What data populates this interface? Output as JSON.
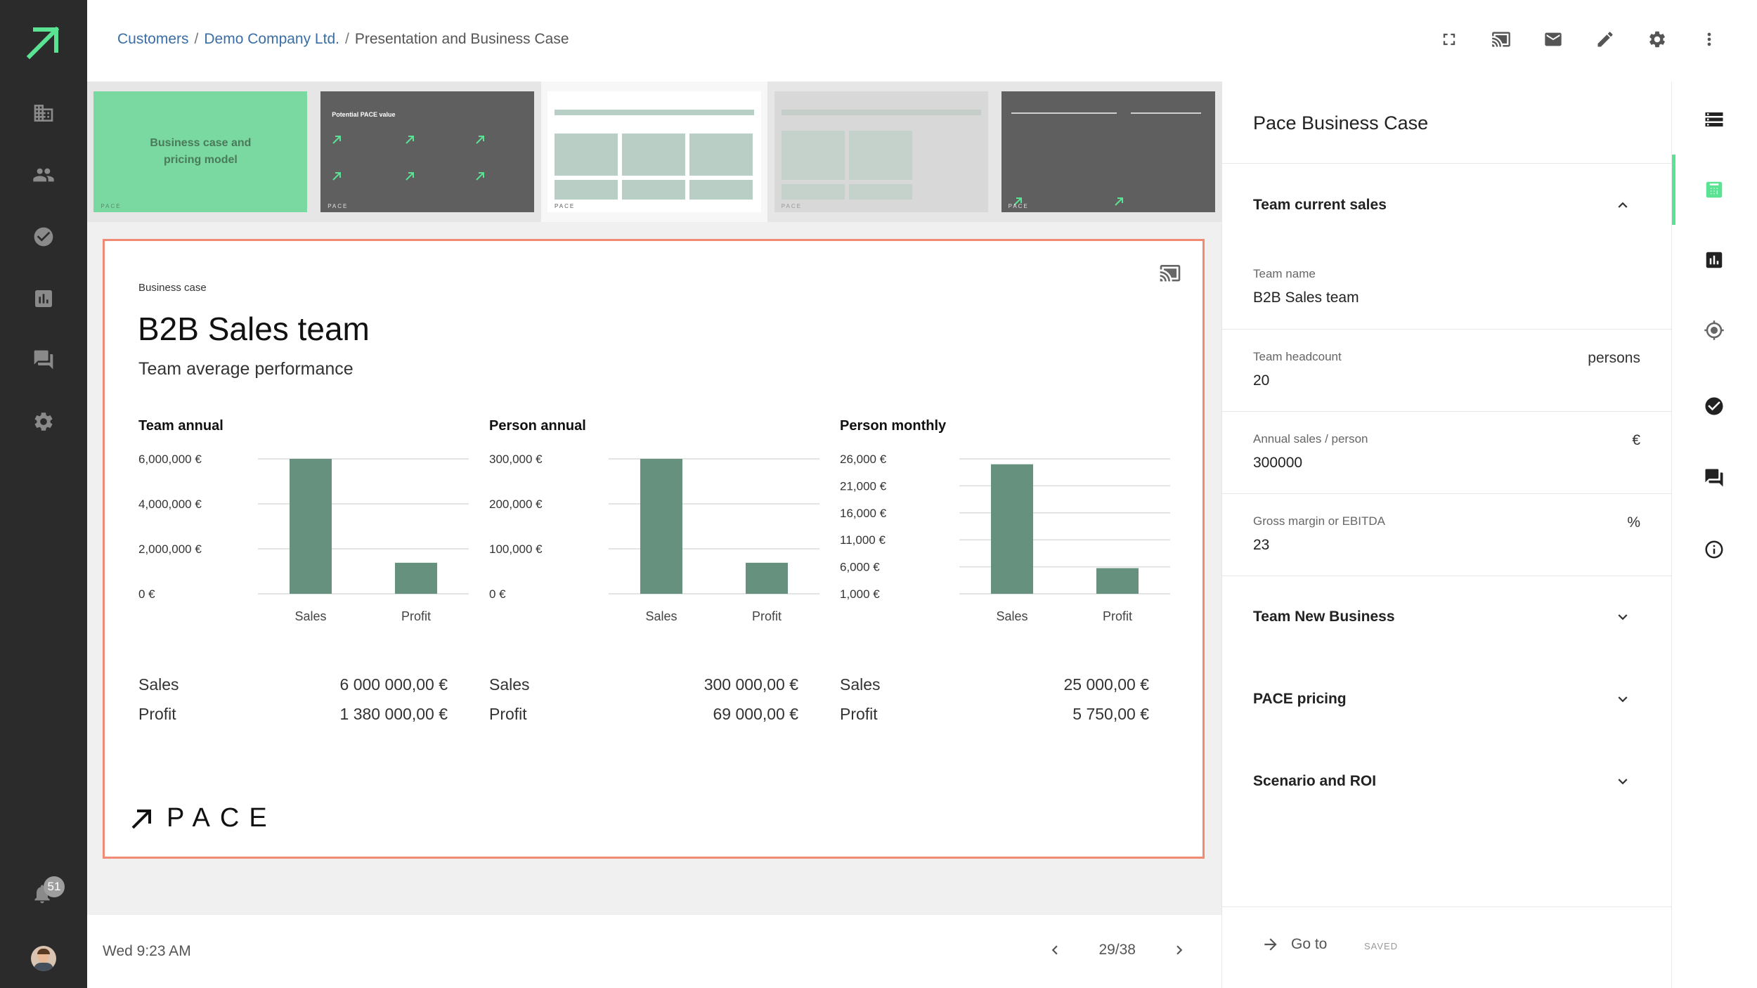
{
  "breadcrumb": {
    "items": [
      "Customers",
      "Demo Company Ltd.",
      "Presentation and Business Case"
    ]
  },
  "sidebar": {
    "items": [
      "building-icon",
      "people-icon",
      "check-circle-icon",
      "bar-chart-icon",
      "chat-icon",
      "gear-icon"
    ],
    "notifications_count": "51"
  },
  "thumbnails": {
    "items": [
      {
        "label": "Business case and pricing model",
        "footer": "PACE"
      },
      {
        "label": "Potential PACE value",
        "footer": "PACE"
      },
      {
        "label": "",
        "footer": "PACE"
      },
      {
        "label": "",
        "footer": "PACE"
      },
      {
        "label": "",
        "footer": "PACE"
      }
    ]
  },
  "slide": {
    "kicker": "Business case",
    "title": "B2B Sales team",
    "subtitle": "Team average performance",
    "logo_text": "PACE",
    "charts": {
      "team": {
        "title": "Team annual",
        "sales_label": "Sales",
        "sales_value": "6 000 000,00 €",
        "profit_label": "Profit",
        "profit_value": "1 380 000,00 €"
      },
      "person_annual": {
        "title": "Person annual",
        "sales_label": "Sales",
        "sales_value": "300 000,00 €",
        "profit_label": "Profit",
        "profit_value": "69 000,00 €"
      },
      "person_monthly": {
        "title": "Person monthly",
        "sales_label": "Sales",
        "sales_value": "25 000,00 €",
        "profit_label": "Profit",
        "profit_value": "5 750,00 €"
      }
    }
  },
  "chart_data": [
    {
      "type": "bar",
      "title": "Team annual",
      "categories": [
        "Sales",
        "Profit"
      ],
      "values": [
        6000000,
        1380000
      ],
      "yticks": [
        "0 €",
        "2,000,000 €",
        "4,000,000 €",
        "6,000,000 €"
      ],
      "ytick_values": [
        0,
        2000000,
        4000000,
        6000000
      ],
      "ylim": [
        0,
        6000000
      ],
      "color": "#66917f"
    },
    {
      "type": "bar",
      "title": "Person annual",
      "categories": [
        "Sales",
        "Profit"
      ],
      "values": [
        300000,
        69000
      ],
      "yticks": [
        "0 €",
        "100,000 €",
        "200,000 €",
        "300,000 €"
      ],
      "ytick_values": [
        0,
        100000,
        200000,
        300000
      ],
      "ylim": [
        0,
        300000
      ],
      "color": "#66917f"
    },
    {
      "type": "bar",
      "title": "Person monthly",
      "categories": [
        "Sales",
        "Profit"
      ],
      "values": [
        25000,
        5750
      ],
      "yticks": [
        "1,000 €",
        "6,000 €",
        "11,000 €",
        "16,000 €",
        "21,000 €",
        "26,000 €"
      ],
      "ytick_values": [
        1000,
        6000,
        11000,
        16000,
        21000,
        26000
      ],
      "ylim": [
        1000,
        26000
      ],
      "color": "#66917f"
    }
  ],
  "footer": {
    "time": "Wed 9:23 AM",
    "page": "29/38"
  },
  "panel": {
    "title": "Pace Business Case",
    "sections": [
      {
        "label": "Team current sales",
        "expanded": true
      },
      {
        "label": "Team New Business",
        "expanded": false
      },
      {
        "label": "PACE pricing",
        "expanded": false
      },
      {
        "label": "Scenario and ROI",
        "expanded": false
      }
    ],
    "fields": [
      {
        "label": "Team name",
        "value": "B2B Sales team",
        "unit": ""
      },
      {
        "label": "Team headcount",
        "value": "20",
        "unit": "persons"
      },
      {
        "label": "Annual sales / person",
        "value": "300000",
        "unit": "€"
      },
      {
        "label": "Gross margin or EBITDA",
        "value": "23",
        "unit": "%"
      }
    ],
    "goto_label": "Go to",
    "saved_label": "SAVED"
  },
  "rail": {
    "items": [
      "storage-icon",
      "calculator-icon",
      "chart-icon",
      "target-icon",
      "check-icon",
      "comment-icon",
      "info-icon"
    ],
    "active_index": 1
  },
  "colors": {
    "accent": "#5be394",
    "bar": "#66917f",
    "slide_border": "#f08a73",
    "sidebar": "#2b2b2b"
  }
}
